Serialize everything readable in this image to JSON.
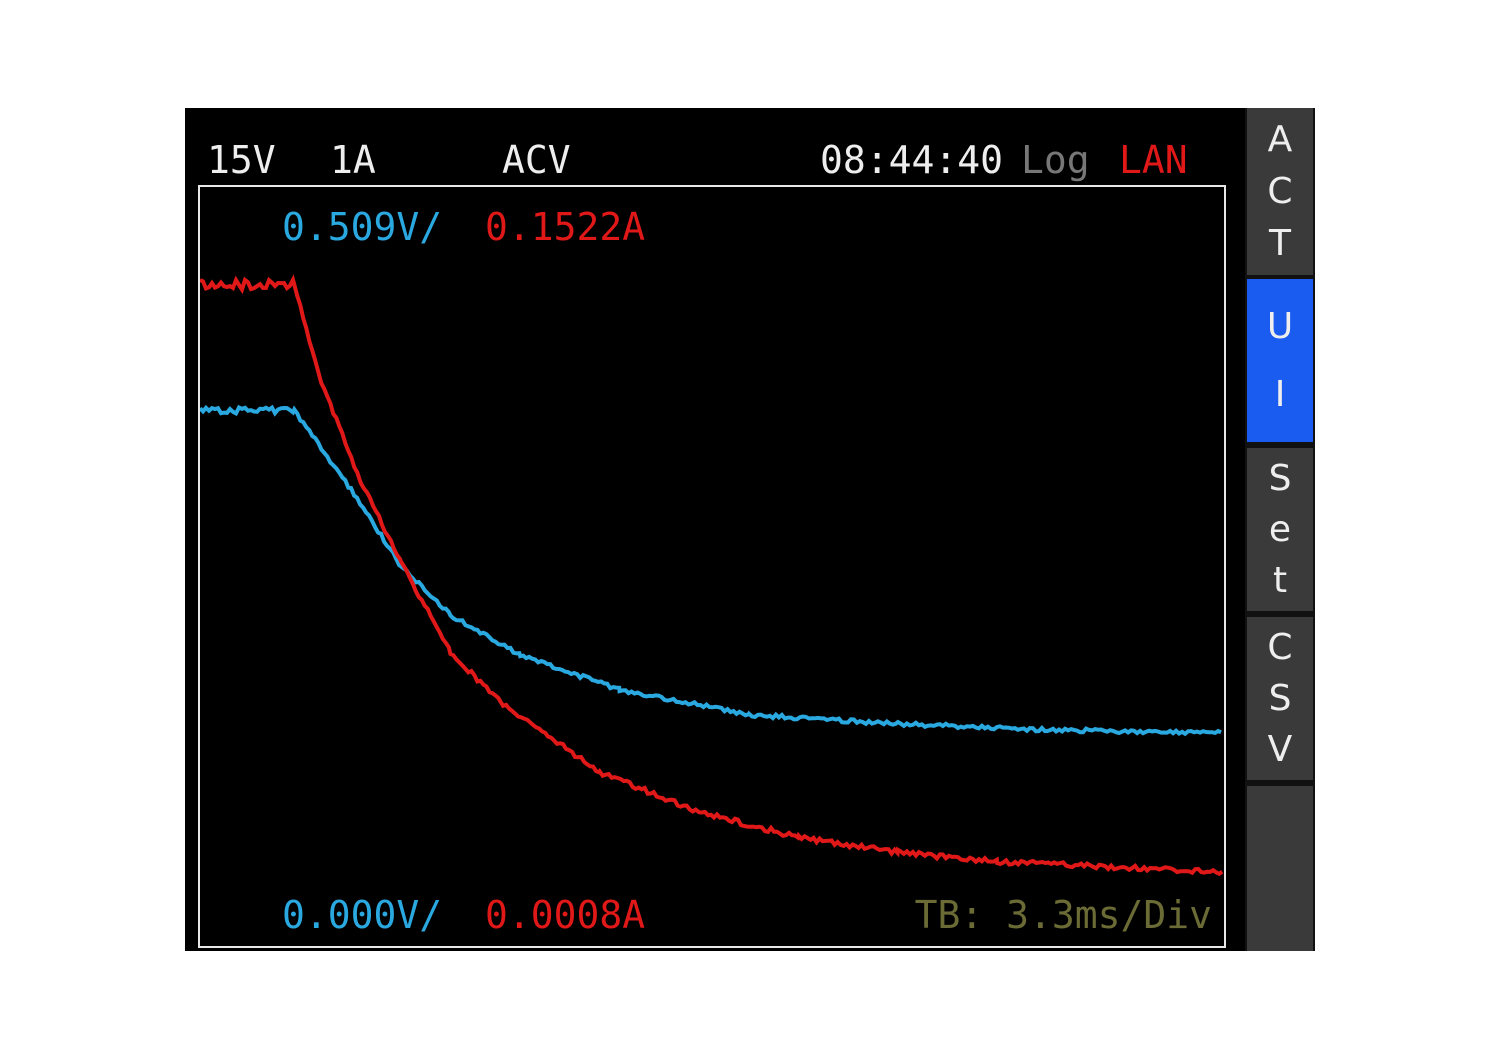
{
  "header": {
    "voltage_range": "15V",
    "current_range": "1A",
    "mode": "ACV",
    "time": "08:44:40",
    "log": "Log",
    "lan": "LAN"
  },
  "scale": {
    "top_voltage": "0.509V/",
    "top_current": "0.1522A",
    "bottom_voltage": "0.000V/",
    "bottom_current": "0.0008A",
    "timebase": "TB:  3.3ms/Div"
  },
  "colors": {
    "voltage": "#2aa8e0",
    "current": "#e01818",
    "timebase": "#6b6b35",
    "active_tab": "#1a5cf0",
    "lan": "#e01818",
    "log": "#777777"
  },
  "sidebar": {
    "items": [
      {
        "label": [
          "A",
          "C",
          "T"
        ],
        "active": false
      },
      {
        "label": [
          "U",
          "I"
        ],
        "active": true
      },
      {
        "label": [
          "S",
          "e",
          "t"
        ],
        "active": false
      },
      {
        "label": [
          "C",
          "S",
          "V"
        ],
        "active": false
      },
      {
        "label": [],
        "active": false
      }
    ]
  },
  "chart_data": {
    "type": "line",
    "xlabel": "",
    "ylabel": "",
    "xlim_ms": [
      0,
      33
    ],
    "voltage_ylim": [
      0.0,
      0.509
    ],
    "current_ylim": [
      0.0008,
      0.1522
    ],
    "grid": false,
    "series": [
      {
        "unit": "V",
        "x_ms": [
          0,
          3.04,
          4.87,
          6.47,
          8.07,
          10.32,
          13.52,
          17.69,
          22.49,
          27.3,
          33.0
        ],
        "values": [
          0.359,
          0.359,
          0.306,
          0.255,
          0.222,
          0.195,
          0.172,
          0.155,
          0.149,
          0.145,
          0.143
        ]
      },
      {
        "unit": "A",
        "x_ms": [
          0,
          3.04,
          3.91,
          5.19,
          6.47,
          8.07,
          9.67,
          12.88,
          16.08,
          19.29,
          22.49,
          25.69,
          33.0
        ],
        "values": [
          0.1327,
          0.1327,
          0.1133,
          0.0934,
          0.0774,
          0.0594,
          0.0495,
          0.0355,
          0.0275,
          0.0225,
          0.0195,
          0.0176,
          0.0156
        ]
      }
    ]
  }
}
